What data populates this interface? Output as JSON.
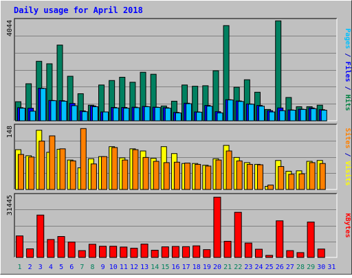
{
  "chart_data": {
    "type": "bar",
    "title": "Daily usage for April 2018",
    "categories": [
      "1",
      "2",
      "3",
      "4",
      "5",
      "6",
      "7",
      "8",
      "9",
      "10",
      "11",
      "12",
      "13",
      "14",
      "15",
      "16",
      "17",
      "18",
      "19",
      "20",
      "21",
      "22",
      "23",
      "24",
      "25",
      "26",
      "27",
      "28",
      "29",
      "30",
      "31"
    ],
    "weekend_days": [
      "1",
      "7",
      "8",
      "14",
      "15",
      "21",
      "22",
      "28",
      "29"
    ],
    "grid": true,
    "panels": [
      {
        "name": "hits-files-pages",
        "ymax_label": "4044",
        "ymax": 4044,
        "right_label": [
          {
            "text": "Pages",
            "color": "#00c0ff"
          },
          {
            "text": " / ",
            "color": "#0000c0"
          },
          {
            "text": "Files",
            "color": "#0000ff"
          },
          {
            "text": " / ",
            "color": "#0000c0"
          },
          {
            "text": "Hits",
            "color": "#008040"
          }
        ],
        "series": [
          {
            "name": "Hits",
            "color": "#008060",
            "values": [
              780,
              1500,
              2400,
              2300,
              3050,
              1800,
              1100,
              640,
              1450,
              1630,
              1760,
              1560,
              1960,
              1880,
              610,
              800,
              1450,
              1400,
              1420,
              2020,
              3830,
              1360,
              1660,
              1160,
              470,
              4020,
              950,
              580,
              580,
              640,
              0
            ]
          },
          {
            "name": "Files",
            "color": "#0000ff",
            "values": [
              540,
              520,
              1320,
              830,
              820,
              710,
              410,
              610,
              370,
              550,
              550,
              560,
              590,
              560,
              540,
              350,
              720,
              370,
              630,
              380,
              860,
              810,
              690,
              630,
              420,
              530,
              450,
              480,
              530,
              460,
              0
            ]
          },
          {
            "name": "Pages",
            "color": "#00c0ff",
            "values": [
              520,
              400,
              1310,
              820,
              800,
              620,
              380,
              580,
              370,
              530,
              520,
              540,
              580,
              550,
              520,
              330,
              700,
              360,
              600,
              330,
              850,
              790,
              680,
              600,
              370,
              420,
              440,
              470,
              500,
              440,
              0
            ]
          }
        ]
      },
      {
        "name": "visits-sites",
        "ymax_label": "148",
        "ymax": 148,
        "right_label": [
          {
            "text": "Sites",
            "color": "#ff8000"
          },
          {
            "text": " / ",
            "color": "#0000c0"
          },
          {
            "text": "Visits",
            "color": "#ffff00"
          }
        ],
        "series": [
          {
            "name": "Visits",
            "color": "#ffff00",
            "values": [
              93,
              79,
              138,
              87,
              94,
              69,
              51,
              72,
              77,
              100,
              74,
              95,
              90,
              73,
              100,
              84,
              61,
              61,
              57,
              72,
              103,
              75,
              63,
              59,
              8,
              68,
              43,
              44,
              66,
              68,
              0
            ]
          },
          {
            "name": "Sites",
            "color": "#ff8000",
            "values": [
              82,
              76,
              113,
              125,
              95,
              67,
              142,
              60,
              77,
              98,
              69,
              93,
              75,
              66,
              63,
              64,
              62,
              59,
              55,
              69,
              90,
              67,
              59,
              58,
              11,
              54,
              36,
              37,
              63,
              61,
              0
            ]
          }
        ]
      },
      {
        "name": "kbytes",
        "ymax_label": "31445",
        "ymax": 31445,
        "right_label": [
          {
            "text": "KBytes",
            "color": "#ff0000"
          }
        ],
        "series": [
          {
            "name": "KBytes",
            "color": "#ff0000",
            "values": [
              11000,
              4500,
              21500,
              9200,
              10700,
              7900,
              3600,
              6800,
              5800,
              5800,
              5400,
              4800,
              6900,
              3800,
              5500,
              5700,
              5600,
              6000,
              4100,
              30500,
              8300,
              22900,
              7400,
              4300,
              1200,
              18600,
              3600,
              2600,
              18000,
              4400,
              0
            ]
          }
        ]
      }
    ]
  },
  "colors": {
    "frame": "#c0c0c0",
    "plot_bg": "#c0c0c0",
    "grid": "#808080",
    "title": "#0000ff",
    "weekday_label": "#0000ff",
    "weekend_label": "#00805c"
  }
}
